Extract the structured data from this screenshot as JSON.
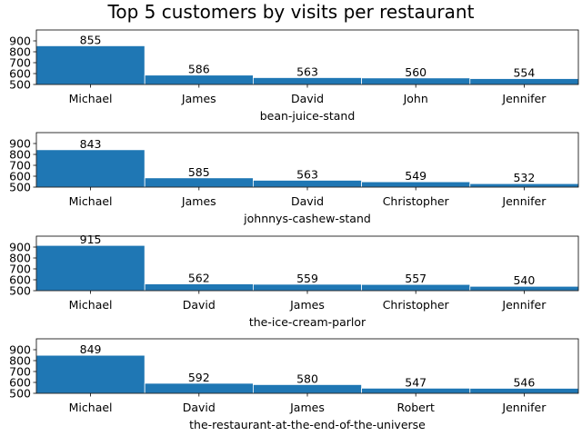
{
  "chart_data": {
    "type": "bar",
    "title": "Top 5 customers by visits per restaurant",
    "bar_color": "#1f77b4",
    "ylim": [
      500,
      1000
    ],
    "yticks": [
      500,
      600,
      700,
      800,
      900
    ],
    "grid": false,
    "subplots": [
      {
        "xlabel": "bean-juice-stand",
        "categories": [
          "Michael",
          "James",
          "David",
          "John",
          "Jennifer"
        ],
        "values": [
          855,
          586,
          563,
          560,
          554
        ]
      },
      {
        "xlabel": "johnnys-cashew-stand",
        "categories": [
          "Michael",
          "James",
          "David",
          "Christopher",
          "Jennifer"
        ],
        "values": [
          843,
          585,
          563,
          549,
          532
        ]
      },
      {
        "xlabel": "the-ice-cream-parlor",
        "categories": [
          "Michael",
          "David",
          "James",
          "Christopher",
          "Jennifer"
        ],
        "values": [
          915,
          562,
          559,
          557,
          540
        ]
      },
      {
        "xlabel": "the-restaurant-at-the-end-of-the-universe",
        "categories": [
          "Michael",
          "David",
          "James",
          "Robert",
          "Jennifer"
        ],
        "values": [
          849,
          592,
          580,
          547,
          546
        ]
      }
    ]
  }
}
